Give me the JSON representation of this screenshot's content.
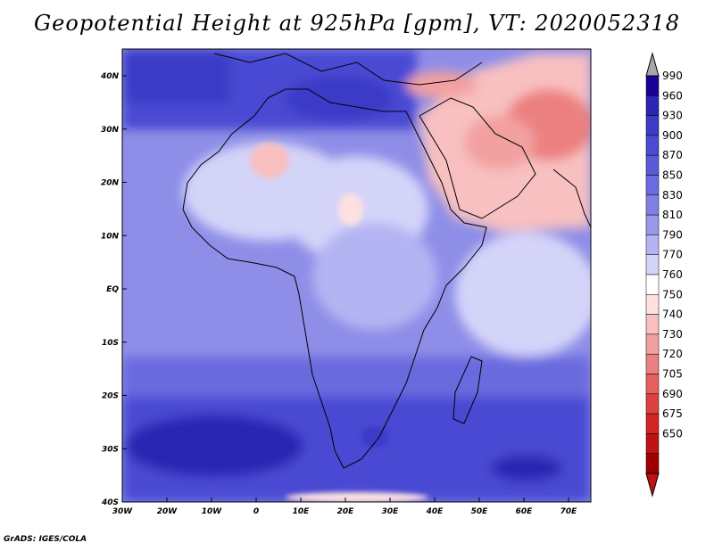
{
  "title": "Geopotential Height at 925hPa [gpm], VT: 2020052318",
  "credit": "GrADS: IGES/COLA",
  "lat_ticks": [
    "40N",
    "30N",
    "20N",
    "10N",
    "EQ",
    "10S",
    "20S",
    "30S",
    "40S"
  ],
  "lon_ticks": [
    "30W",
    "20W",
    "10W",
    "0",
    "10E",
    "20E",
    "30E",
    "40E",
    "50E",
    "60E",
    "70E"
  ],
  "colorbar": {
    "levels": [
      "990",
      "960",
      "930",
      "900",
      "870",
      "850",
      "830",
      "810",
      "790",
      "770",
      "760",
      "750",
      "740",
      "730",
      "720",
      "705",
      "690",
      "675",
      "650"
    ],
    "colors": [
      "#1b0097",
      "#2c25b4",
      "#3b3bc7",
      "#4a4ad3",
      "#5a5ad9",
      "#6b6bdf",
      "#8080e6",
      "#9898ec",
      "#b4b4f3",
      "#d4d4f9",
      "#ffffff",
      "#fde0e0",
      "#f8c0c0",
      "#f2a0a0",
      "#ec8080",
      "#e66060",
      "#de4040",
      "#d42525",
      "#c01212",
      "#a00000"
    ],
    "top_cap_color": "#a8a8a8",
    "bottom_cap_color": "#c01212"
  },
  "map_fill_color": "#8e8ee8"
}
